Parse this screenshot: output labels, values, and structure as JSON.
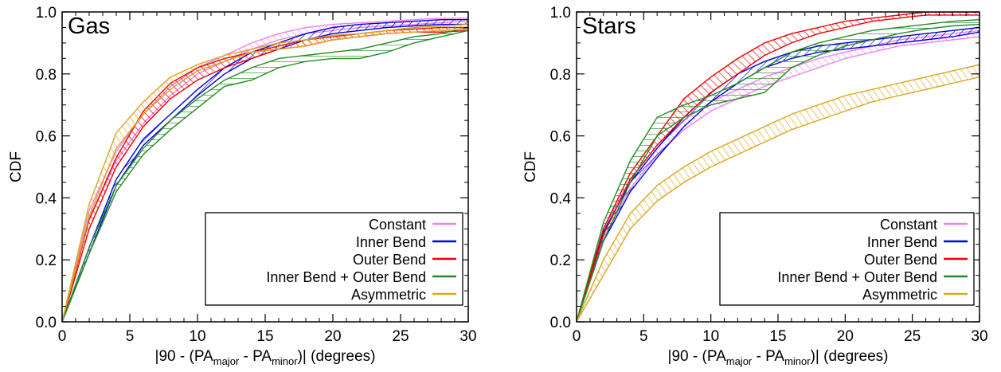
{
  "chart_data": [
    {
      "type": "line",
      "panel_label": "Gas",
      "xlabel": {
        "prefix": "|90 - (PA",
        "sub1": "major",
        "mid": " - PA",
        "sub2": "minor",
        "suffix": ")| (degrees)"
      },
      "ylabel": "CDF",
      "xlim": [
        0,
        30
      ],
      "ylim": [
        0,
        1
      ],
      "xticks": [
        0,
        5,
        10,
        15,
        20,
        25,
        30
      ],
      "yticks": [
        0.0,
        0.2,
        0.4,
        0.6,
        0.8,
        1.0
      ],
      "legend_position": "bottom-right",
      "series": [
        {
          "name": "Constant",
          "color": "#ee82ee",
          "x": [
            0,
            2,
            4,
            6,
            8,
            10,
            12,
            14,
            16,
            18,
            20,
            22,
            24,
            26,
            28,
            30
          ],
          "lower": [
            0,
            0.33,
            0.52,
            0.64,
            0.73,
            0.8,
            0.84,
            0.88,
            0.91,
            0.93,
            0.94,
            0.95,
            0.955,
            0.96,
            0.965,
            0.97
          ],
          "upper": [
            0,
            0.36,
            0.55,
            0.67,
            0.76,
            0.82,
            0.86,
            0.9,
            0.93,
            0.95,
            0.96,
            0.965,
            0.97,
            0.975,
            0.98,
            0.98
          ]
        },
        {
          "name": "Inner Bend",
          "color": "#0000dd",
          "x": [
            0,
            2,
            4,
            6,
            8,
            10,
            12,
            14,
            16,
            18,
            20,
            22,
            24,
            26,
            28,
            30
          ],
          "lower": [
            0,
            0.22,
            0.44,
            0.57,
            0.65,
            0.73,
            0.8,
            0.85,
            0.88,
            0.91,
            0.93,
            0.94,
            0.95,
            0.955,
            0.96,
            0.96
          ],
          "upper": [
            0,
            0.24,
            0.46,
            0.59,
            0.67,
            0.75,
            0.82,
            0.87,
            0.9,
            0.93,
            0.95,
            0.96,
            0.965,
            0.97,
            0.975,
            0.975
          ]
        },
        {
          "name": "Outer Bend",
          "color": "#ee0000",
          "x": [
            0,
            2,
            4,
            6,
            8,
            10,
            12,
            14,
            16,
            18,
            20,
            22,
            24,
            26,
            28,
            30
          ],
          "lower": [
            0,
            0.3,
            0.5,
            0.63,
            0.72,
            0.78,
            0.82,
            0.85,
            0.88,
            0.89,
            0.91,
            0.92,
            0.93,
            0.935,
            0.935,
            0.94
          ],
          "upper": [
            0,
            0.33,
            0.53,
            0.68,
            0.77,
            0.82,
            0.85,
            0.87,
            0.89,
            0.91,
            0.92,
            0.93,
            0.94,
            0.945,
            0.95,
            0.95
          ]
        },
        {
          "name": "Inner Bend + Outer Bend",
          "color": "#228b22",
          "x": [
            0,
            2,
            4,
            6,
            8,
            10,
            12,
            14,
            16,
            18,
            20,
            22,
            24,
            26,
            28,
            30
          ],
          "lower": [
            0,
            0.22,
            0.42,
            0.54,
            0.62,
            0.69,
            0.76,
            0.78,
            0.82,
            0.84,
            0.85,
            0.85,
            0.87,
            0.9,
            0.92,
            0.94
          ],
          "upper": [
            0,
            0.24,
            0.44,
            0.56,
            0.65,
            0.72,
            0.78,
            0.82,
            0.85,
            0.86,
            0.87,
            0.88,
            0.9,
            0.92,
            0.93,
            0.95
          ]
        },
        {
          "name": "Asymmetric",
          "color": "#daa520",
          "x": [
            0,
            2,
            4,
            6,
            8,
            10,
            12,
            14,
            16,
            18,
            20,
            22,
            24,
            26,
            28,
            30
          ],
          "lower": [
            0,
            0.34,
            0.56,
            0.67,
            0.75,
            0.81,
            0.84,
            0.87,
            0.88,
            0.89,
            0.91,
            0.92,
            0.93,
            0.935,
            0.94,
            0.945
          ],
          "upper": [
            0,
            0.38,
            0.61,
            0.71,
            0.79,
            0.83,
            0.86,
            0.88,
            0.9,
            0.91,
            0.925,
            0.93,
            0.94,
            0.95,
            0.955,
            0.96
          ]
        }
      ]
    },
    {
      "type": "line",
      "panel_label": "Stars",
      "xlabel": {
        "prefix": "|90 - (PA",
        "sub1": "major",
        "mid": " - PA",
        "sub2": "minor",
        "suffix": ")| (degrees)"
      },
      "ylabel": "CDF",
      "xlim": [
        0,
        30
      ],
      "ylim": [
        0,
        1
      ],
      "xticks": [
        0,
        5,
        10,
        15,
        20,
        25,
        30
      ],
      "yticks": [
        0.0,
        0.2,
        0.4,
        0.6,
        0.8,
        1.0
      ],
      "legend_position": "bottom-right",
      "series": [
        {
          "name": "Constant",
          "color": "#ee82ee",
          "x": [
            0,
            2,
            4,
            6,
            8,
            10,
            12,
            14,
            16,
            18,
            20,
            22,
            24,
            26,
            28,
            30
          ],
          "lower": [
            0,
            0.27,
            0.43,
            0.54,
            0.62,
            0.68,
            0.72,
            0.76,
            0.79,
            0.82,
            0.85,
            0.87,
            0.89,
            0.9,
            0.91,
            0.92
          ],
          "upper": [
            0,
            0.3,
            0.46,
            0.57,
            0.65,
            0.71,
            0.75,
            0.79,
            0.82,
            0.85,
            0.87,
            0.89,
            0.91,
            0.92,
            0.93,
            0.94
          ]
        },
        {
          "name": "Inner Bend",
          "color": "#0000dd",
          "x": [
            0,
            2,
            4,
            6,
            8,
            10,
            12,
            14,
            16,
            18,
            20,
            22,
            24,
            26,
            28,
            30
          ],
          "lower": [
            0,
            0.26,
            0.42,
            0.53,
            0.63,
            0.71,
            0.77,
            0.82,
            0.85,
            0.87,
            0.88,
            0.89,
            0.9,
            0.91,
            0.92,
            0.935
          ],
          "upper": [
            0,
            0.29,
            0.45,
            0.56,
            0.66,
            0.74,
            0.8,
            0.84,
            0.87,
            0.89,
            0.9,
            0.91,
            0.92,
            0.93,
            0.94,
            0.95
          ]
        },
        {
          "name": "Outer Bend",
          "color": "#ee0000",
          "x": [
            0,
            2,
            4,
            6,
            8,
            10,
            12,
            14,
            16,
            18,
            20,
            22,
            24,
            26,
            28,
            30
          ],
          "lower": [
            0,
            0.28,
            0.46,
            0.57,
            0.66,
            0.74,
            0.8,
            0.86,
            0.9,
            0.93,
            0.95,
            0.97,
            0.98,
            0.99,
            0.99,
            0.99
          ],
          "upper": [
            0,
            0.3,
            0.48,
            0.6,
            0.72,
            0.79,
            0.85,
            0.9,
            0.93,
            0.95,
            0.97,
            0.98,
            0.99,
            1.0,
            1.0,
            1.0
          ]
        },
        {
          "name": "Inner Bend + Outer Bend",
          "color": "#228b22",
          "x": [
            0,
            2,
            4,
            6,
            8,
            10,
            12,
            14,
            16,
            18,
            20,
            22,
            24,
            26,
            28,
            30
          ],
          "lower": [
            0,
            0.26,
            0.45,
            0.6,
            0.66,
            0.7,
            0.72,
            0.74,
            0.82,
            0.86,
            0.89,
            0.91,
            0.93,
            0.945,
            0.955,
            0.96
          ],
          "upper": [
            0,
            0.32,
            0.52,
            0.66,
            0.7,
            0.73,
            0.77,
            0.82,
            0.87,
            0.9,
            0.92,
            0.94,
            0.95,
            0.96,
            0.97,
            0.975
          ]
        },
        {
          "name": "Asymmetric",
          "color": "#daa520",
          "x": [
            0,
            2,
            4,
            6,
            8,
            10,
            12,
            14,
            16,
            18,
            20,
            22,
            24,
            26,
            28,
            30
          ],
          "lower": [
            0,
            0.15,
            0.3,
            0.39,
            0.45,
            0.5,
            0.54,
            0.58,
            0.62,
            0.65,
            0.68,
            0.71,
            0.73,
            0.75,
            0.77,
            0.79
          ],
          "upper": [
            0,
            0.2,
            0.35,
            0.44,
            0.5,
            0.55,
            0.59,
            0.63,
            0.67,
            0.7,
            0.73,
            0.75,
            0.77,
            0.79,
            0.81,
            0.83
          ]
        }
      ]
    }
  ]
}
